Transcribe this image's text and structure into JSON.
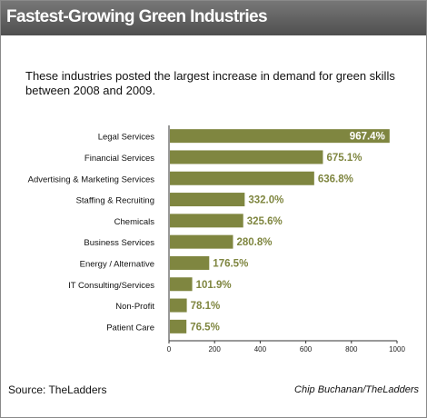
{
  "header": {
    "title": "Fastest-Growing Green Industries"
  },
  "subtitle": "These industries posted the largest increase in demand for green skills between 2008 and 2009.",
  "footer": {
    "source": "Source: TheLadders",
    "credit": "Chip Buchanan/TheLadders"
  },
  "colors": {
    "bar": "#7f8640",
    "value_label": "#7f8640",
    "top_value_label": "#ffffff",
    "banner": "#5f5f5f"
  },
  "chart_data": {
    "type": "bar",
    "orientation": "horizontal",
    "categories": [
      "Legal Services",
      "Financial Services",
      "Advertising & Marketing Services",
      "Staffing & Recruiting",
      "Chemicals",
      "Business Services",
      "Energy / Alternative",
      "IT Consulting/Services",
      "Non-Profit",
      "Patient Care"
    ],
    "values": [
      967.4,
      675.1,
      636.8,
      332.0,
      325.6,
      280.8,
      176.5,
      101.9,
      78.1,
      76.5
    ],
    "value_labels": [
      "967.4%",
      "675.1%",
      "636.8%",
      "332.0%",
      "325.6%",
      "280.8%",
      "176.5%",
      "101.9%",
      "78.1%",
      "76.5%"
    ],
    "xlim": [
      0,
      1000
    ],
    "xticks": [
      0,
      200,
      400,
      600,
      800,
      1000
    ],
    "xtick_labels": [
      "0",
      "200",
      "400",
      "600",
      "800",
      "1000"
    ],
    "grid": false,
    "legend": "none"
  }
}
